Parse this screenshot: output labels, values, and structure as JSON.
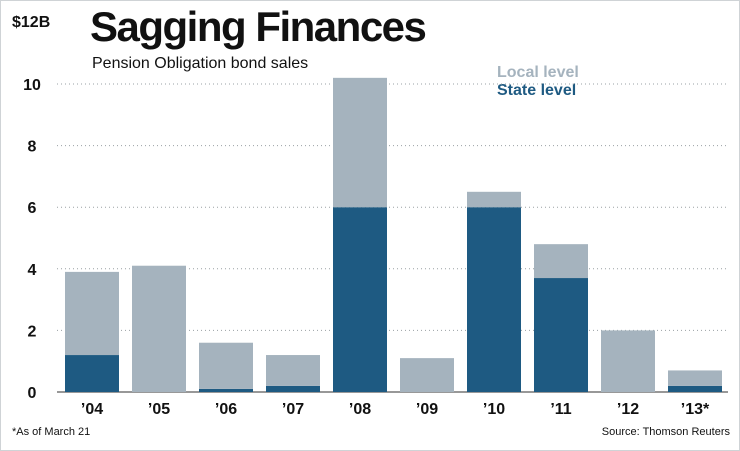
{
  "chart_data": {
    "type": "bar",
    "stacked": true,
    "title": "Sagging Finances",
    "subtitle": "Pension Obligation bond sales",
    "y_unit_label": "$12B",
    "categories": [
      "’04",
      "’05",
      "’06",
      "’07",
      "’08",
      "’09",
      "’10",
      "’11",
      "’12",
      "’13*"
    ],
    "series": [
      {
        "name": "State level",
        "color": "#1e5a82",
        "values": [
          1.2,
          0,
          0.1,
          0.2,
          6.0,
          0,
          6.0,
          3.7,
          0,
          0.2
        ]
      },
      {
        "name": "Local level",
        "color": "#a5b3be",
        "values": [
          2.7,
          4.1,
          1.5,
          1.0,
          4.2,
          1.1,
          0.5,
          1.1,
          2.0,
          0.5
        ]
      }
    ],
    "legend_order": [
      "Local level",
      "State level"
    ],
    "yticks": [
      "0",
      "2",
      "4",
      "6",
      "8",
      "10"
    ],
    "ylim": [
      0,
      12
    ],
    "legend_position": "top-right",
    "footnote": "*As of March 21",
    "source": "Source: Thomson Reuters"
  }
}
